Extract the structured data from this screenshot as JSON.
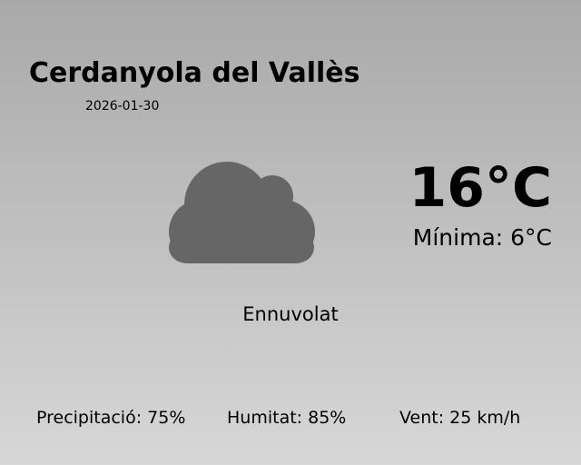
{
  "city": "Cerdanyola del Vallès",
  "date": "2026-01-30",
  "weather_icon": "cloud-icon",
  "icon_color": "#666666",
  "temperature": "16°C",
  "minimum": "Mínima: 6°C",
  "condition": "Ennuvolat",
  "stats": {
    "precipitation": "Precipitació: 75%",
    "humidity": "Humitat: 85%",
    "wind": "Vent: 25 km/h"
  }
}
